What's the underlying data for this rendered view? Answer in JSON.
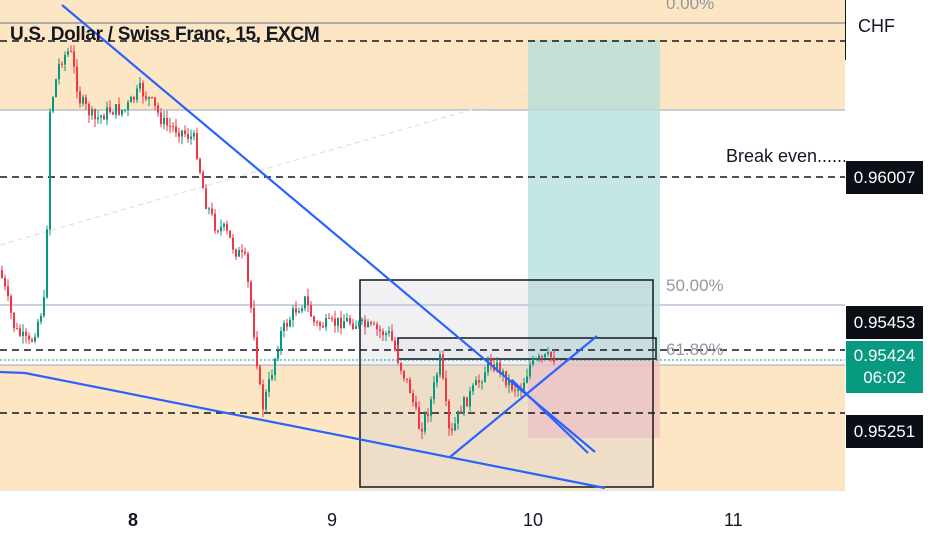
{
  "chart_title": "U.S. Dollar / Swiss Franc, 15, EXCM",
  "currency": "CHF",
  "annotation": "Break even.......",
  "fib_levels": [
    {
      "label": "0.00%"
    },
    {
      "label": "50.00%"
    },
    {
      "label": "61.80%"
    }
  ],
  "price_tags": {
    "break_even": "0.96007",
    "upper": "0.95453",
    "current_price": "0.95424",
    "countdown": "06:02",
    "lower": "0.95251"
  },
  "colors": {
    "candle_up": "#089981",
    "candle_down": "#f23645",
    "trendline": "#2962ff",
    "profit_zone": "#b2dfdb",
    "loss_zone": "#f7c9c9",
    "fib_band": "#fde6c3"
  },
  "chart_data": {
    "type": "candlestick",
    "title": "U.S. Dollar / Swiss Franc, 15, EXCM",
    "x_ticks": [
      "8",
      "9",
      "10",
      "11"
    ],
    "y_axis_unit": "CHF",
    "marked_prices": [
      0.96007,
      0.95453,
      0.95424,
      0.95251
    ]
  }
}
